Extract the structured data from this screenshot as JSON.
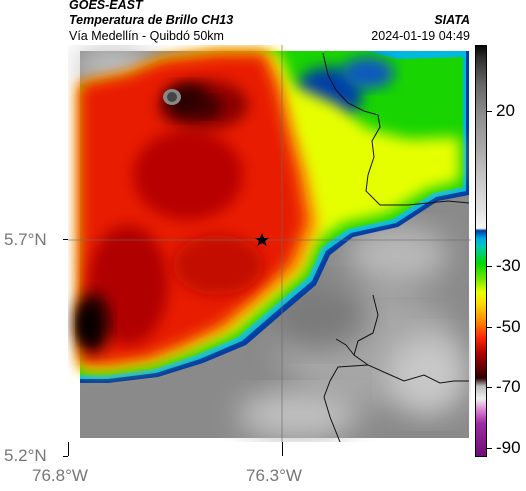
{
  "header": {
    "satellite": "GOES-EAST",
    "product": "Temperatura de Brillo CH13",
    "agency": "SIATA",
    "route": "Vía Medellín - Quibdó 50km",
    "datetime": "2024-01-19 04:49"
  },
  "colorbar": {
    "ticks": [
      "20",
      "-30",
      "-50",
      "-70",
      "-90"
    ]
  },
  "axes": {
    "lat_ticks": [
      "5.7°N",
      "5.2°N"
    ],
    "lon_ticks": [
      "76.8°W",
      "76.3°W"
    ]
  },
  "colors": {
    "cold_core": "#cc1200",
    "very_cold": "#2a0000",
    "mid": "#f0ff00",
    "warm_edge": "#00d000",
    "cold_edge": "#003ca0",
    "background_clear": "#8c8c8c"
  },
  "marker": {
    "icon": "star-icon"
  }
}
